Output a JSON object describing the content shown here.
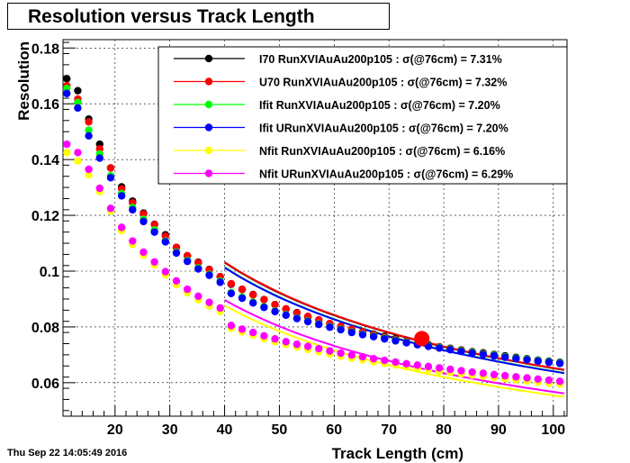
{
  "timestamp": "Thu Sep 22 14:05:49 2016",
  "chart_data": {
    "type": "scatter",
    "title": "Resolution versus Track Length",
    "xlabel": "Track Length (cm)",
    "ylabel": "Resolution",
    "xlim": [
      10.5,
      102.5
    ],
    "ylim": [
      0.048,
      0.183
    ],
    "xticks": [
      20,
      30,
      40,
      50,
      60,
      70,
      80,
      90,
      100
    ],
    "yticks": [
      0.06,
      0.08,
      0.1,
      0.12,
      0.14,
      0.16,
      0.18
    ],
    "ytick_labels": [
      "0.06",
      "0.08",
      "0.1",
      "0.12",
      "0.14",
      "0.16",
      "0.18"
    ],
    "grid": true,
    "legend_position": "top-right",
    "x": [
      11.2,
      13.2,
      15.2,
      17.2,
      19.2,
      21.2,
      23.2,
      25.2,
      27.2,
      29.2,
      31.2,
      33.2,
      35.2,
      37.2,
      39.2,
      41.2,
      43.2,
      45.2,
      47.2,
      49.2,
      51.2,
      53.2,
      55.2,
      57.2,
      59.2,
      61.2,
      63.2,
      65.2,
      67.2,
      69.2,
      71.2,
      73.2,
      75.2,
      77.2,
      79.2,
      81.2,
      83.2,
      85.2,
      87.2,
      89.2,
      91.2,
      93.2,
      95.2,
      97.2,
      99.2,
      101.2
    ],
    "series": [
      {
        "name": "I70  RunXVIAuAu200p105 : σ(@76cm) =  7.31%",
        "color": "#000000",
        "values": [
          0.169,
          0.1647,
          0.1545,
          0.1455,
          0.137,
          0.1302,
          0.1251,
          0.1208,
          0.1168,
          0.113,
          0.1085,
          0.1055,
          0.1032,
          0.1006,
          0.098,
          0.0953,
          0.0934,
          0.0916,
          0.0898,
          0.088,
          0.0864,
          0.0851,
          0.0835,
          0.0825,
          0.0812,
          0.0802,
          0.0791,
          0.0782,
          0.0774,
          0.0766,
          0.0758,
          0.0749,
          0.0741,
          0.0736,
          0.0729,
          0.0723,
          0.0717,
          0.0711,
          0.0707,
          0.0701,
          0.0696,
          0.0691,
          0.0686,
          0.0681,
          0.0677,
          0.0673
        ]
      },
      {
        "name": "U70  RunXVIAuAu200p105 : σ(@76cm) =  7.32%",
        "color": "#ff0000",
        "values": [
          0.1665,
          0.1617,
          0.1535,
          0.1438,
          0.137,
          0.1295,
          0.1245,
          0.1205,
          0.1167,
          0.1125,
          0.1085,
          0.1055,
          0.103,
          0.1005,
          0.098,
          0.0955,
          0.0935,
          0.0915,
          0.0898,
          0.088,
          0.0865,
          0.085,
          0.0838,
          0.0825,
          0.0812,
          0.0802,
          0.0792,
          0.0782,
          0.0772,
          0.0763,
          0.0755,
          0.0748,
          0.0741,
          0.0733,
          0.0728,
          0.0721,
          0.0715,
          0.0709,
          0.0704,
          0.0698,
          0.0693,
          0.0688,
          0.0684,
          0.0679,
          0.0675,
          0.0671
        ]
      },
      {
        "name": "Ifit RunXVIAuAu200p105 : σ(@76cm) =  7.20%",
        "color": "#00ff00",
        "values": [
          0.1655,
          0.1605,
          0.1505,
          0.142,
          0.1342,
          0.1278,
          0.1228,
          0.1186,
          0.1148,
          0.1108,
          0.1068,
          0.1038,
          0.1012,
          0.0988,
          0.0964,
          0.0923,
          0.0907,
          0.0889,
          0.0872,
          0.0857,
          0.0844,
          0.0832,
          0.0821,
          0.0811,
          0.0801,
          0.0792,
          0.0782,
          0.0774,
          0.0767,
          0.0759,
          0.0752,
          0.0745,
          0.0738,
          0.0732,
          0.0726,
          0.072,
          0.0714,
          0.0708,
          0.0703,
          0.0698,
          0.0693,
          0.0688,
          0.0684,
          0.0679,
          0.0675,
          0.0671
        ]
      },
      {
        "name": "Ifit URunXVIAuAu200p105 : σ(@76cm) =  7.20%",
        "color": "#0000ff",
        "values": [
          0.1637,
          0.1585,
          0.1485,
          0.1405,
          0.1335,
          0.127,
          0.122,
          0.1178,
          0.114,
          0.1105,
          0.1065,
          0.1035,
          0.1008,
          0.0985,
          0.096,
          0.092,
          0.0903,
          0.0886,
          0.087,
          0.0855,
          0.0842,
          0.083,
          0.0819,
          0.0809,
          0.0799,
          0.079,
          0.078,
          0.0772,
          0.0765,
          0.0757,
          0.075,
          0.0743,
          0.0736,
          0.073,
          0.0724,
          0.0718,
          0.0712,
          0.0706,
          0.0701,
          0.0696,
          0.0691,
          0.0686,
          0.0682,
          0.0677,
          0.0673,
          0.0669
        ]
      },
      {
        "name": "Nfit RunXVIAuAu200p105 : σ(@76cm) =  6.16%",
        "color": "#ffff00",
        "values": [
          0.1425,
          0.1395,
          0.1345,
          0.1285,
          0.1215,
          0.1145,
          0.1095,
          0.1057,
          0.1022,
          0.0987,
          0.0952,
          0.0922,
          0.0897,
          0.0875,
          0.0855,
          0.0795,
          0.0782,
          0.077,
          0.0758,
          0.0747,
          0.0737,
          0.0728,
          0.0719,
          0.0711,
          0.0703,
          0.0695,
          0.0688,
          0.0682,
          0.0675,
          0.0669,
          0.0663,
          0.0657,
          0.0652,
          0.0647,
          0.0641,
          0.0636,
          0.0632,
          0.0627,
          0.0623,
          0.0618,
          0.0614,
          0.061,
          0.0606,
          0.0602,
          0.0598,
          0.0595
        ]
      },
      {
        "name": "Nfit URunXVIAuAu200p105 : σ(@76cm) =  6.29%",
        "color": "#ff00ff",
        "values": [
          0.1455,
          0.1425,
          0.1365,
          0.1297,
          0.1225,
          0.1157,
          0.1108,
          0.1068,
          0.1033,
          0.0998,
          0.0965,
          0.0935,
          0.091,
          0.0888,
          0.0868,
          0.0805,
          0.0792,
          0.078,
          0.0768,
          0.0757,
          0.0747,
          0.0738,
          0.073,
          0.0722,
          0.0714,
          0.0706,
          0.0699,
          0.0693,
          0.0686,
          0.068,
          0.0674,
          0.0668,
          0.0663,
          0.0658,
          0.0653,
          0.0648,
          0.0643,
          0.0638,
          0.0634,
          0.0629,
          0.0625,
          0.0621,
          0.0617,
          0.0613,
          0.0609,
          0.0605
        ]
      }
    ],
    "fit_lines": [
      {
        "color": "#000000",
        "a": 0.00631
      },
      {
        "color": "#ff0000",
        "a": 0.00632
      },
      {
        "color": "#00ff00",
        "a": 0.00621
      },
      {
        "color": "#0000ff",
        "a": 0.0062
      },
      {
        "color": "#ffff00",
        "a": 0.00537
      },
      {
        "color": "#ff00ff",
        "a": 0.00549
      }
    ],
    "marker": {
      "x": 76,
      "y": 0.0758,
      "color": "#ff0000"
    }
  }
}
